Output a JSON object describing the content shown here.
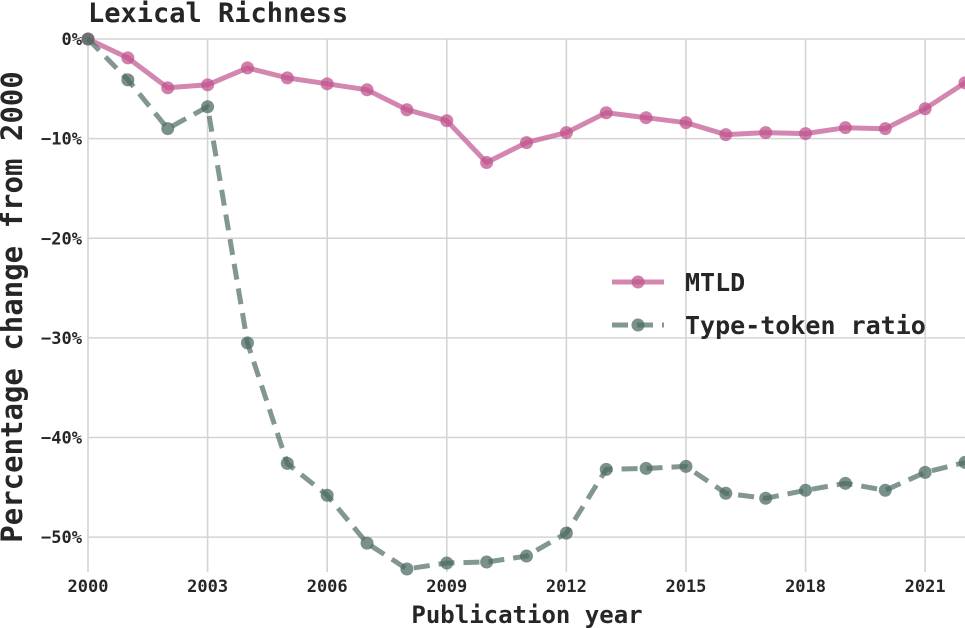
{
  "chart_data": {
    "type": "line",
    "title": "Lexical Richness",
    "xlabel": "Publication year",
    "ylabel": "Percentage change from 2000",
    "xlim": [
      2000,
      2022
    ],
    "ylim": [
      -53.5,
      0
    ],
    "x_ticks": [
      2000,
      2003,
      2006,
      2009,
      2012,
      2015,
      2018,
      2021
    ],
    "y_ticks": [
      0,
      -10,
      -20,
      -30,
      -40,
      -50
    ],
    "y_tick_labels": [
      "0%",
      "−10%",
      "−20%",
      "−30%",
      "−40%",
      "−50%"
    ],
    "grid": true,
    "legend_position": "center-right",
    "x": [
      2000,
      2001,
      2002,
      2003,
      2004,
      2005,
      2006,
      2007,
      2008,
      2009,
      2010,
      2011,
      2012,
      2013,
      2014,
      2015,
      2016,
      2017,
      2018,
      2019,
      2020,
      2021,
      2022
    ],
    "series": [
      {
        "name": "MTLD",
        "color": "#c0548f",
        "line_style": "solid",
        "values": [
          0,
          -1.9,
          -4.9,
          -4.6,
          -2.9,
          -3.9,
          -4.5,
          -5.1,
          -7.1,
          -8.2,
          -12.4,
          -10.4,
          -9.4,
          -7.4,
          -7.9,
          -8.4,
          -9.6,
          -9.4,
          -9.5,
          -8.9,
          -9.0,
          -7.0,
          -4.4
        ]
      },
      {
        "name": "Type-token ratio",
        "color": "#4d6b64",
        "line_style": "dashed",
        "values": [
          0,
          -4.1,
          -9.0,
          -6.8,
          -30.5,
          -42.6,
          -45.8,
          -50.6,
          -53.2,
          -52.6,
          -52.5,
          -51.9,
          -49.6,
          -43.2,
          -43.1,
          -42.9,
          -45.6,
          -46.1,
          -45.3,
          -44.6,
          -45.3,
          -43.5,
          -42.5
        ]
      }
    ]
  }
}
